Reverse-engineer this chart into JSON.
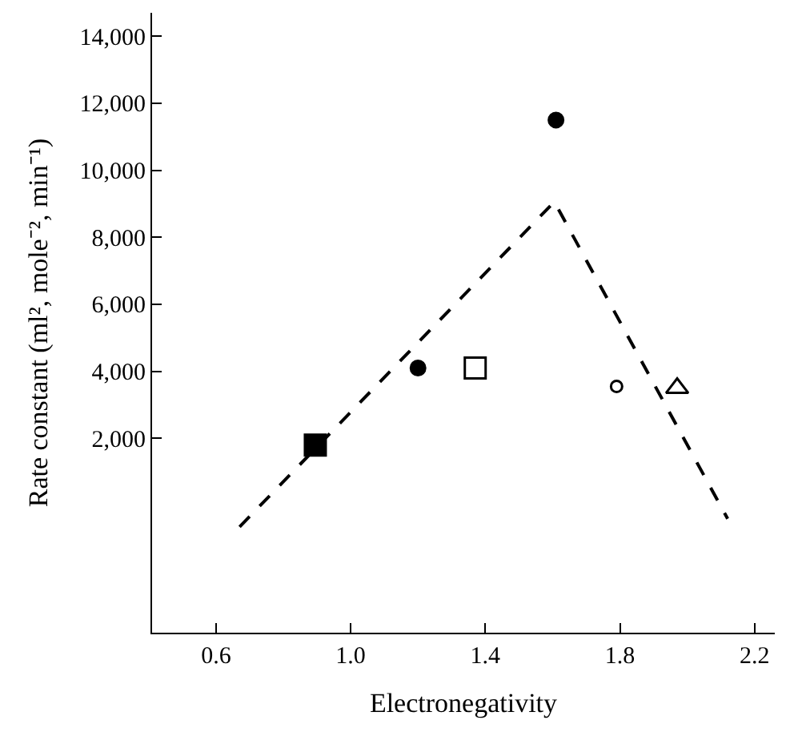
{
  "chart_data": {
    "type": "scatter",
    "xlabel": "Electronegativity",
    "ylabel": "Rate constant (ml², mole⁻², min⁻¹)",
    "xlim": [
      0.41,
      2.26
    ],
    "ylim": [
      -3800,
      14700
    ],
    "xticks": [
      {
        "value": 0.6,
        "label": "0.6"
      },
      {
        "value": 1.0,
        "label": "1.0"
      },
      {
        "value": 1.4,
        "label": "1.4"
      },
      {
        "value": 1.8,
        "label": "1.8"
      },
      {
        "value": 2.2,
        "label": "2.2"
      }
    ],
    "yticks": [
      {
        "value": 2000,
        "label": "2,000"
      },
      {
        "value": 4000,
        "label": "4,000"
      },
      {
        "value": 6000,
        "label": "6,000"
      },
      {
        "value": 8000,
        "label": "8,000"
      },
      {
        "value": 10000,
        "label": "10,000"
      },
      {
        "value": 12000,
        "label": "12,000"
      },
      {
        "value": 14000,
        "label": "14,000"
      }
    ],
    "series": [
      {
        "type": "line",
        "x": [
          0.67,
          1.605,
          2.12
        ],
        "values": [
          -640,
          9060,
          -400
        ],
        "color": "#000000",
        "line_style": "dashed",
        "marker": "none"
      },
      {
        "x": [
          0.895
        ],
        "values": [
          1800
        ],
        "color": "#000000",
        "marker": "square"
      },
      {
        "x": [
          1.2
        ],
        "values": [
          4100
        ],
        "color": "#000000",
        "marker": "circle"
      },
      {
        "x": [
          1.37
        ],
        "values": [
          4100
        ],
        "color": "#000000",
        "marker": "square-open"
      },
      {
        "x": [
          1.61
        ],
        "values": [
          11500
        ],
        "color": "#000000",
        "marker": "circle-dot"
      },
      {
        "x": [
          1.79
        ],
        "values": [
          3550
        ],
        "color": "#000000",
        "marker": "circle-open"
      },
      {
        "x": [
          1.97
        ],
        "values": [
          3500
        ],
        "color": "#000000",
        "marker": "triangle-open"
      }
    ]
  }
}
